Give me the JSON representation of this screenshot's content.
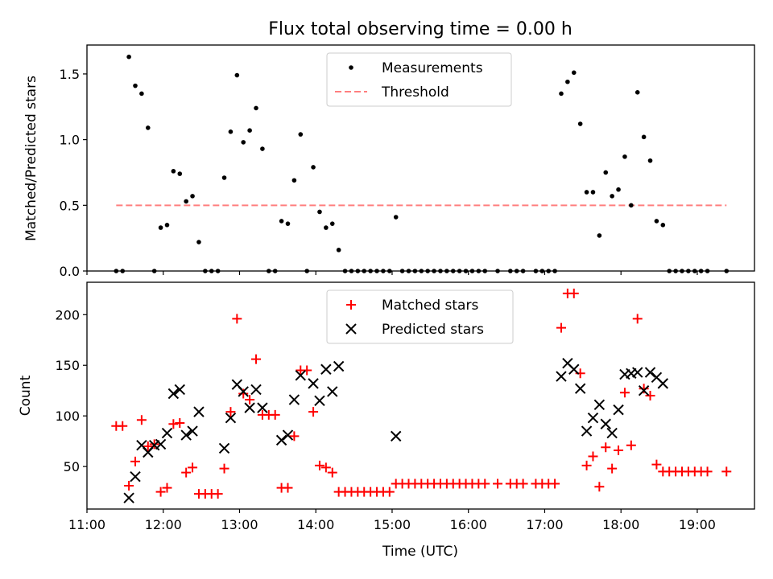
{
  "figure": {
    "title": "Flux total observing time = 0.00 h",
    "xlabel": "Time (UTC)"
  },
  "colors": {
    "measurements": "#000000",
    "threshold": "#ff7f7f",
    "matched": "#ff0000",
    "predicted": "#000000"
  },
  "chart_data": [
    {
      "type": "scatter",
      "ylabel": "Matched/Predicted stars",
      "xlim": [
        "11:00",
        "19:45"
      ],
      "ylim": [
        0,
        1.72
      ],
      "xticks": [
        "11:00",
        "12:00",
        "13:00",
        "14:00",
        "15:00",
        "16:00",
        "17:00",
        "18:00",
        "19:00"
      ],
      "xtick_labels_shown": false,
      "yticks": [
        0.0,
        0.5,
        1.0,
        1.5
      ],
      "ytick_labels": [
        "0.0",
        "0.5",
        "1.0",
        "1.5"
      ],
      "legend": {
        "placement": "upper center",
        "entries": [
          "Measurements",
          "Threshold"
        ]
      },
      "threshold": {
        "name": "Threshold",
        "y": 0.5,
        "x_range": [
          "11:23",
          "19:23"
        ]
      },
      "series": [
        {
          "name": "Measurements",
          "marker": "dot",
          "points": [
            [
              "11:23",
              0
            ],
            [
              "11:28",
              0
            ],
            [
              "11:33",
              1.63
            ],
            [
              "11:38",
              1.41
            ],
            [
              "11:43",
              1.35
            ],
            [
              "11:48",
              1.09
            ],
            [
              "11:53",
              0
            ],
            [
              "11:58",
              0.33
            ],
            [
              "12:03",
              0.35
            ],
            [
              "12:08",
              0.76
            ],
            [
              "12:13",
              0.74
            ],
            [
              "12:18",
              0.53
            ],
            [
              "12:23",
              0.57
            ],
            [
              "12:28",
              0.22
            ],
            [
              "12:33",
              0
            ],
            [
              "12:38",
              0
            ],
            [
              "12:43",
              0
            ],
            [
              "12:48",
              0.71
            ],
            [
              "12:53",
              1.06
            ],
            [
              "12:58",
              1.49
            ],
            [
              "13:03",
              0.98
            ],
            [
              "13:08",
              1.07
            ],
            [
              "13:13",
              1.24
            ],
            [
              "13:18",
              0.93
            ],
            [
              "13:23",
              0
            ],
            [
              "13:28",
              0
            ],
            [
              "13:33",
              0.38
            ],
            [
              "13:38",
              0.36
            ],
            [
              "13:43",
              0.69
            ],
            [
              "13:48",
              1.04
            ],
            [
              "13:53",
              0
            ],
            [
              "13:58",
              0.79
            ],
            [
              "14:03",
              0.45
            ],
            [
              "14:08",
              0.33
            ],
            [
              "14:13",
              0.36
            ],
            [
              "14:18",
              0.16
            ],
            [
              "14:23",
              0
            ],
            [
              "14:28",
              0
            ],
            [
              "14:33",
              0
            ],
            [
              "14:38",
              0
            ],
            [
              "14:43",
              0
            ],
            [
              "14:48",
              0
            ],
            [
              "14:53",
              0
            ],
            [
              "14:58",
              0
            ],
            [
              "15:03",
              0.41
            ],
            [
              "15:08",
              0
            ],
            [
              "15:13",
              0
            ],
            [
              "15:18",
              0
            ],
            [
              "15:23",
              0
            ],
            [
              "15:28",
              0
            ],
            [
              "15:33",
              0
            ],
            [
              "15:38",
              0
            ],
            [
              "15:43",
              0
            ],
            [
              "15:48",
              0
            ],
            [
              "15:53",
              0
            ],
            [
              "15:58",
              0
            ],
            [
              "16:03",
              0
            ],
            [
              "16:08",
              0
            ],
            [
              "16:13",
              0
            ],
            [
              "16:23",
              0
            ],
            [
              "16:33",
              0
            ],
            [
              "16:38",
              0
            ],
            [
              "16:43",
              0
            ],
            [
              "16:53",
              0
            ],
            [
              "16:58",
              0
            ],
            [
              "17:03",
              0
            ],
            [
              "17:08",
              0
            ],
            [
              "17:13",
              1.35
            ],
            [
              "17:18",
              1.44
            ],
            [
              "17:23",
              1.51
            ],
            [
              "17:28",
              1.12
            ],
            [
              "17:33",
              0.6
            ],
            [
              "17:38",
              0.6
            ],
            [
              "17:43",
              0.27
            ],
            [
              "17:48",
              0.75
            ],
            [
              "17:53",
              0.57
            ],
            [
              "17:58",
              0.62
            ],
            [
              "18:03",
              0.87
            ],
            [
              "18:08",
              0.5
            ],
            [
              "18:13",
              1.36
            ],
            [
              "18:18",
              1.02
            ],
            [
              "18:23",
              0.84
            ],
            [
              "18:28",
              0.38
            ],
            [
              "18:33",
              0.35
            ],
            [
              "18:38",
              0
            ],
            [
              "18:43",
              0
            ],
            [
              "18:48",
              0
            ],
            [
              "18:53",
              0
            ],
            [
              "18:58",
              0
            ],
            [
              "19:03",
              0
            ],
            [
              "19:08",
              0
            ],
            [
              "19:23",
              0
            ]
          ]
        }
      ]
    },
    {
      "type": "scatter",
      "ylabel": "Count",
      "xlim": [
        "11:00",
        "19:45"
      ],
      "ylim": [
        8,
        232
      ],
      "xticks": [
        "11:00",
        "12:00",
        "13:00",
        "14:00",
        "15:00",
        "16:00",
        "17:00",
        "18:00",
        "19:00"
      ],
      "xtick_labels": [
        "11:00",
        "12:00",
        "13:00",
        "14:00",
        "15:00",
        "16:00",
        "17:00",
        "18:00",
        "19:00"
      ],
      "yticks": [
        50,
        100,
        150,
        200
      ],
      "ytick_labels": [
        "50",
        "100",
        "150",
        "200"
      ],
      "legend": {
        "placement": "upper center",
        "entries": [
          "Matched stars",
          "Predicted stars"
        ]
      },
      "series": [
        {
          "name": "Matched stars",
          "marker": "plus",
          "points": [
            [
              "11:23",
              90
            ],
            [
              "11:28",
              90
            ],
            [
              "11:33",
              31
            ],
            [
              "11:38",
              55
            ],
            [
              "11:43",
              96
            ],
            [
              "11:48",
              70
            ],
            [
              "11:53",
              72
            ],
            [
              "11:58",
              25
            ],
            [
              "12:03",
              29
            ],
            [
              "12:08",
              92
            ],
            [
              "12:13",
              93
            ],
            [
              "12:18",
              44
            ],
            [
              "12:23",
              49
            ],
            [
              "12:28",
              23
            ],
            [
              "12:33",
              23
            ],
            [
              "12:38",
              23
            ],
            [
              "12:43",
              23
            ],
            [
              "12:48",
              48
            ],
            [
              "12:53",
              104
            ],
            [
              "12:58",
              196
            ],
            [
              "13:03",
              122
            ],
            [
              "13:08",
              116
            ],
            [
              "13:13",
              156
            ],
            [
              "13:18",
              101
            ],
            [
              "13:23",
              101
            ],
            [
              "13:28",
              101
            ],
            [
              "13:33",
              29
            ],
            [
              "13:38",
              29
            ],
            [
              "13:43",
              80
            ],
            [
              "13:48",
              145
            ],
            [
              "13:53",
              145
            ],
            [
              "13:58",
              104
            ],
            [
              "14:03",
              51
            ],
            [
              "14:08",
              49
            ],
            [
              "14:13",
              44
            ],
            [
              "14:18",
              25
            ],
            [
              "14:23",
              25
            ],
            [
              "14:28",
              25
            ],
            [
              "14:33",
              25
            ],
            [
              "14:38",
              25
            ],
            [
              "14:43",
              25
            ],
            [
              "14:48",
              25
            ],
            [
              "14:53",
              25
            ],
            [
              "14:58",
              25
            ],
            [
              "15:03",
              33
            ],
            [
              "15:08",
              33
            ],
            [
              "15:13",
              33
            ],
            [
              "15:18",
              33
            ],
            [
              "15:23",
              33
            ],
            [
              "15:28",
              33
            ],
            [
              "15:33",
              33
            ],
            [
              "15:38",
              33
            ],
            [
              "15:43",
              33
            ],
            [
              "15:48",
              33
            ],
            [
              "15:53",
              33
            ],
            [
              "15:58",
              33
            ],
            [
              "16:03",
              33
            ],
            [
              "16:08",
              33
            ],
            [
              "16:13",
              33
            ],
            [
              "16:23",
              33
            ],
            [
              "16:33",
              33
            ],
            [
              "16:38",
              33
            ],
            [
              "16:43",
              33
            ],
            [
              "16:53",
              33
            ],
            [
              "16:58",
              33
            ],
            [
              "17:03",
              33
            ],
            [
              "17:08",
              33
            ],
            [
              "17:13",
              187
            ],
            [
              "17:18",
              221
            ],
            [
              "17:23",
              221
            ],
            [
              "17:28",
              142
            ],
            [
              "17:33",
              51
            ],
            [
              "17:38",
              60
            ],
            [
              "17:43",
              30
            ],
            [
              "17:48",
              69
            ],
            [
              "17:53",
              48
            ],
            [
              "17:58",
              66
            ],
            [
              "18:03",
              123
            ],
            [
              "18:08",
              71
            ],
            [
              "18:13",
              196
            ],
            [
              "18:18",
              127
            ],
            [
              "18:23",
              120
            ],
            [
              "18:28",
              52
            ],
            [
              "18:33",
              45
            ],
            [
              "18:38",
              45
            ],
            [
              "18:43",
              45
            ],
            [
              "18:48",
              45
            ],
            [
              "18:53",
              45
            ],
            [
              "18:58",
              45
            ],
            [
              "19:03",
              45
            ],
            [
              "19:08",
              45
            ],
            [
              "19:23",
              45
            ]
          ]
        },
        {
          "name": "Predicted stars",
          "marker": "x",
          "points": [
            [
              "11:33",
              19
            ],
            [
              "11:38",
              40
            ],
            [
              "11:43",
              71
            ],
            [
              "11:48",
              64
            ],
            [
              "11:53",
              71
            ],
            [
              "11:58",
              72
            ],
            [
              "12:03",
              83
            ],
            [
              "12:08",
              122
            ],
            [
              "12:13",
              126
            ],
            [
              "12:18",
              81
            ],
            [
              "12:23",
              85
            ],
            [
              "12:28",
              104
            ],
            [
              "12:48",
              68
            ],
            [
              "12:53",
              98
            ],
            [
              "12:58",
              131
            ],
            [
              "13:03",
              124
            ],
            [
              "13:08",
              108
            ],
            [
              "13:13",
              126
            ],
            [
              "13:18",
              108
            ],
            [
              "13:33",
              76
            ],
            [
              "13:38",
              81
            ],
            [
              "13:43",
              116
            ],
            [
              "13:48",
              140
            ],
            [
              "13:58",
              132
            ],
            [
              "14:03",
              115
            ],
            [
              "14:08",
              146
            ],
            [
              "14:13",
              124
            ],
            [
              "14:18",
              149
            ],
            [
              "15:03",
              80
            ],
            [
              "17:13",
              139
            ],
            [
              "17:18",
              152
            ],
            [
              "17:23",
              146
            ],
            [
              "17:28",
              127
            ],
            [
              "17:33",
              85
            ],
            [
              "17:38",
              98
            ],
            [
              "17:43",
              111
            ],
            [
              "17:48",
              92
            ],
            [
              "17:53",
              83
            ],
            [
              "17:58",
              106
            ],
            [
              "18:03",
              141
            ],
            [
              "18:08",
              142
            ],
            [
              "18:13",
              143
            ],
            [
              "18:18",
              125
            ],
            [
              "18:23",
              143
            ],
            [
              "18:28",
              138
            ],
            [
              "18:33",
              132
            ]
          ]
        }
      ]
    }
  ]
}
